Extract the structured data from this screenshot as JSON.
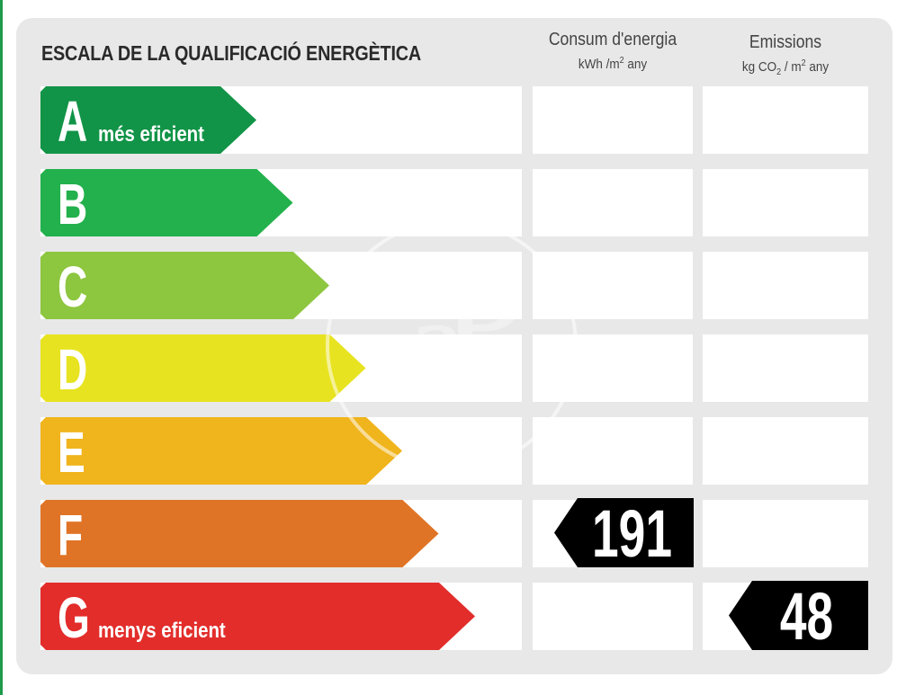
{
  "header": {
    "title": "ESCALA DE LA QUALIFICACIÓ ENERGÈTICA",
    "energy_col": {
      "title": "Consum d'energia",
      "unit_prefix": "kWh /m",
      "unit_sup": "2",
      "unit_suffix": " any"
    },
    "emissions_col": {
      "title": "Emissions",
      "unit_prefix": "kg CO",
      "unit_sub": "2",
      "unit_mid": "  / m",
      "unit_sup": "2",
      "unit_suffix": "  any"
    }
  },
  "chart_data": {
    "type": "bar",
    "categories": [
      "A",
      "B",
      "C",
      "D",
      "E",
      "F",
      "G"
    ],
    "best_label": "més eficient",
    "worst_label": "menys eficient",
    "colors": [
      "#119447",
      "#22b14c",
      "#8dc63f",
      "#e8e320",
      "#f0b41c",
      "#e07426",
      "#e22d2b"
    ],
    "energy_consumption": {
      "rating": "F",
      "value": "191"
    },
    "emissions": {
      "rating": "G",
      "value": "48"
    }
  }
}
